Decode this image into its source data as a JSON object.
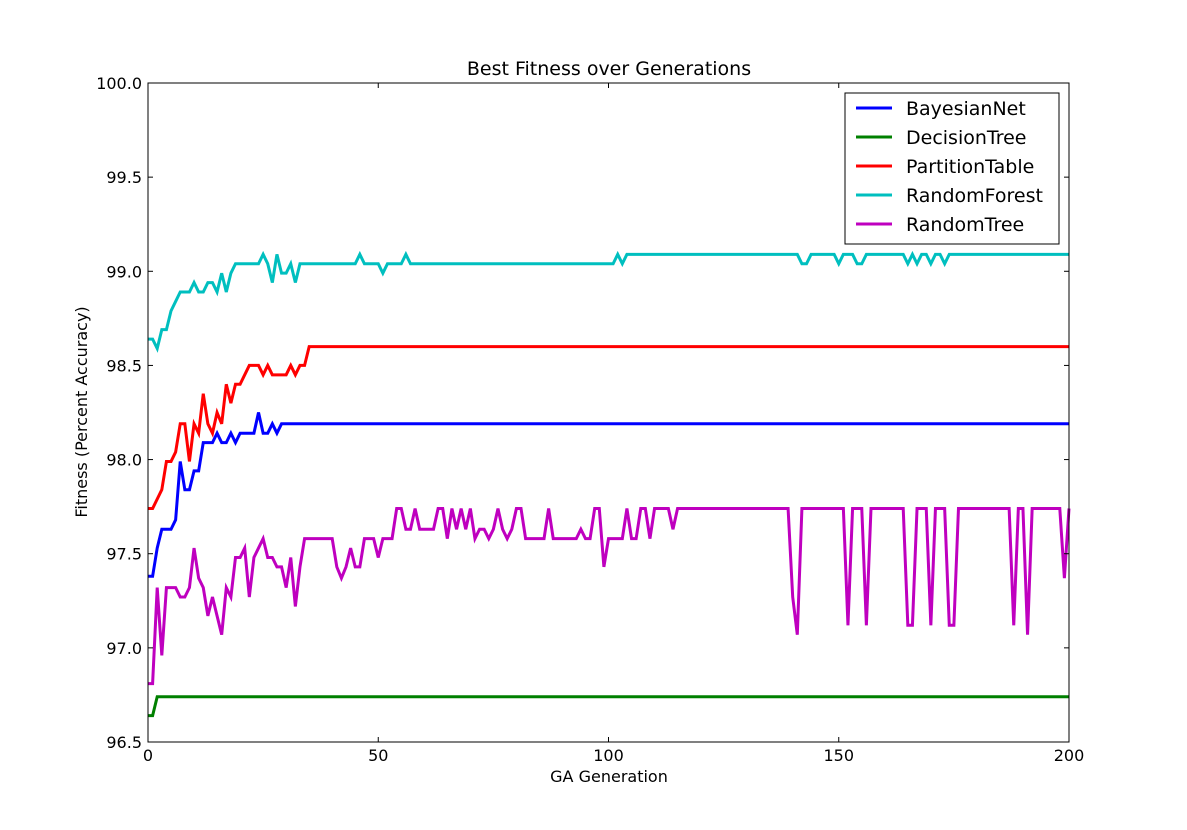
{
  "chart_data": {
    "type": "line",
    "title": "Best Fitness over Generations",
    "xlabel": "GA Generation",
    "ylabel": "Fitness (Percent Accuracy)",
    "xlim": [
      0,
      200
    ],
    "ylim": [
      96.5,
      100.0
    ],
    "xticks": [
      0,
      50,
      100,
      150,
      200
    ],
    "xtick_labels": [
      "0",
      "50",
      "100",
      "150",
      "200"
    ],
    "yticks": [
      96.5,
      97.0,
      97.5,
      98.0,
      98.5,
      99.0,
      99.5,
      100.0
    ],
    "ytick_labels": [
      "96.5",
      "97.0",
      "97.5",
      "98.0",
      "98.5",
      "99.0",
      "99.5",
      "100.0"
    ],
    "grid": false,
    "legend_position": "top-right",
    "series": [
      {
        "name": "BayesianNet",
        "color": "#0000ff",
        "points": [
          [
            0,
            97.38
          ],
          [
            1,
            97.38
          ],
          [
            2,
            97.53
          ],
          [
            3,
            97.63
          ],
          [
            4,
            97.63
          ],
          [
            5,
            97.63
          ],
          [
            6,
            97.68
          ],
          [
            7,
            97.99
          ],
          [
            8,
            97.84
          ],
          [
            9,
            97.84
          ],
          [
            10,
            97.94
          ],
          [
            11,
            97.94
          ],
          [
            12,
            98.09
          ],
          [
            13,
            98.09
          ],
          [
            14,
            98.09
          ],
          [
            15,
            98.14
          ],
          [
            16,
            98.09
          ],
          [
            17,
            98.09
          ],
          [
            18,
            98.14
          ],
          [
            19,
            98.09
          ],
          [
            20,
            98.14
          ],
          [
            21,
            98.14
          ],
          [
            22,
            98.14
          ],
          [
            23,
            98.14
          ],
          [
            24,
            98.25
          ],
          [
            25,
            98.14
          ],
          [
            26,
            98.14
          ],
          [
            27,
            98.19
          ],
          [
            28,
            98.14
          ],
          [
            29,
            98.19
          ],
          [
            200,
            98.19
          ]
        ]
      },
      {
        "name": "DecisionTree",
        "color": "#008000",
        "points": [
          [
            0,
            96.64
          ],
          [
            1,
            96.64
          ],
          [
            2,
            96.74
          ],
          [
            200,
            96.74
          ]
        ]
      },
      {
        "name": "PartitionTable",
        "color": "#ff0000",
        "points": [
          [
            0,
            97.74
          ],
          [
            1,
            97.74
          ],
          [
            3,
            97.84
          ],
          [
            4,
            97.99
          ],
          [
            5,
            97.99
          ],
          [
            6,
            98.04
          ],
          [
            7,
            98.19
          ],
          [
            8,
            98.19
          ],
          [
            9,
            97.99
          ],
          [
            10,
            98.19
          ],
          [
            11,
            98.14
          ],
          [
            12,
            98.35
          ],
          [
            13,
            98.19
          ],
          [
            14,
            98.14
          ],
          [
            15,
            98.25
          ],
          [
            16,
            98.19
          ],
          [
            17,
            98.4
          ],
          [
            18,
            98.3
          ],
          [
            19,
            98.4
          ],
          [
            20,
            98.4
          ],
          [
            22,
            98.5
          ],
          [
            23,
            98.5
          ],
          [
            24,
            98.5
          ],
          [
            25,
            98.45
          ],
          [
            26,
            98.5
          ],
          [
            27,
            98.45
          ],
          [
            30,
            98.45
          ],
          [
            31,
            98.5
          ],
          [
            32,
            98.45
          ],
          [
            33,
            98.5
          ],
          [
            34,
            98.5
          ],
          [
            35,
            98.6
          ],
          [
            200,
            98.6
          ]
        ]
      },
      {
        "name": "RandomForest",
        "color": "#00bfbf",
        "points": [
          [
            0,
            98.64
          ],
          [
            1,
            98.64
          ],
          [
            2,
            98.59
          ],
          [
            3,
            98.69
          ],
          [
            4,
            98.69
          ],
          [
            5,
            98.79
          ],
          [
            6,
            98.84
          ],
          [
            7,
            98.89
          ],
          [
            8,
            98.89
          ],
          [
            9,
            98.89
          ],
          [
            10,
            98.94
          ],
          [
            11,
            98.89
          ],
          [
            12,
            98.89
          ],
          [
            13,
            98.94
          ],
          [
            14,
            98.94
          ],
          [
            15,
            98.89
          ],
          [
            16,
            98.99
          ],
          [
            17,
            98.89
          ],
          [
            18,
            98.99
          ],
          [
            19,
            99.04
          ],
          [
            24,
            99.04
          ],
          [
            25,
            99.09
          ],
          [
            26,
            99.04
          ],
          [
            27,
            98.94
          ],
          [
            28,
            99.09
          ],
          [
            29,
            98.99
          ],
          [
            30,
            98.99
          ],
          [
            31,
            99.04
          ],
          [
            32,
            98.94
          ],
          [
            33,
            99.04
          ],
          [
            45,
            99.04
          ],
          [
            46,
            99.09
          ],
          [
            47,
            99.04
          ],
          [
            50,
            99.04
          ],
          [
            51,
            98.99
          ],
          [
            52,
            99.04
          ],
          [
            55,
            99.04
          ],
          [
            56,
            99.09
          ],
          [
            57,
            99.04
          ],
          [
            101,
            99.04
          ],
          [
            102,
            99.09
          ],
          [
            103,
            99.04
          ],
          [
            104,
            99.09
          ],
          [
            141,
            99.09
          ],
          [
            142,
            99.04
          ],
          [
            143,
            99.04
          ],
          [
            144,
            99.09
          ],
          [
            149,
            99.09
          ],
          [
            150,
            99.04
          ],
          [
            151,
            99.09
          ],
          [
            153,
            99.09
          ],
          [
            154,
            99.04
          ],
          [
            155,
            99.04
          ],
          [
            156,
            99.09
          ],
          [
            164,
            99.09
          ],
          [
            165,
            99.04
          ],
          [
            166,
            99.09
          ],
          [
            167,
            99.04
          ],
          [
            168,
            99.09
          ],
          [
            169,
            99.09
          ],
          [
            170,
            99.04
          ],
          [
            171,
            99.09
          ],
          [
            172,
            99.09
          ],
          [
            173,
            99.04
          ],
          [
            174,
            99.09
          ],
          [
            200,
            99.09
          ]
        ]
      },
      {
        "name": "RandomTree",
        "color": "#bf00bf",
        "points": [
          [
            0,
            96.81
          ],
          [
            1,
            96.81
          ],
          [
            2,
            97.32
          ],
          [
            3,
            96.96
          ],
          [
            4,
            97.32
          ],
          [
            5,
            97.32
          ],
          [
            6,
            97.32
          ],
          [
            7,
            97.27
          ],
          [
            8,
            97.27
          ],
          [
            9,
            97.32
          ],
          [
            10,
            97.53
          ],
          [
            11,
            97.37
          ],
          [
            12,
            97.32
          ],
          [
            13,
            97.17
          ],
          [
            14,
            97.27
          ],
          [
            15,
            97.17
          ],
          [
            16,
            97.07
          ],
          [
            17,
            97.32
          ],
          [
            18,
            97.27
          ],
          [
            19,
            97.48
          ],
          [
            20,
            97.48
          ],
          [
            21,
            97.53
          ],
          [
            22,
            97.27
          ],
          [
            23,
            97.48
          ],
          [
            24,
            97.53
          ],
          [
            25,
            97.58
          ],
          [
            26,
            97.48
          ],
          [
            27,
            97.48
          ],
          [
            28,
            97.43
          ],
          [
            29,
            97.43
          ],
          [
            30,
            97.32
          ],
          [
            31,
            97.48
          ],
          [
            32,
            97.22
          ],
          [
            33,
            97.43
          ],
          [
            34,
            97.58
          ],
          [
            40,
            97.58
          ],
          [
            41,
            97.43
          ],
          [
            42,
            97.37
          ],
          [
            43,
            97.43
          ],
          [
            44,
            97.53
          ],
          [
            45,
            97.43
          ],
          [
            46,
            97.43
          ],
          [
            47,
            97.58
          ],
          [
            49,
            97.58
          ],
          [
            50,
            97.48
          ],
          [
            51,
            97.58
          ],
          [
            53,
            97.58
          ],
          [
            54,
            97.74
          ],
          [
            55,
            97.74
          ],
          [
            56,
            97.63
          ],
          [
            57,
            97.63
          ],
          [
            58,
            97.74
          ],
          [
            59,
            97.63
          ],
          [
            62,
            97.63
          ],
          [
            63,
            97.74
          ],
          [
            64,
            97.74
          ],
          [
            65,
            97.58
          ],
          [
            66,
            97.74
          ],
          [
            67,
            97.63
          ],
          [
            68,
            97.74
          ],
          [
            69,
            97.63
          ],
          [
            70,
            97.74
          ],
          [
            71,
            97.58
          ],
          [
            72,
            97.63
          ],
          [
            73,
            97.63
          ],
          [
            74,
            97.58
          ],
          [
            75,
            97.63
          ],
          [
            76,
            97.74
          ],
          [
            77,
            97.63
          ],
          [
            78,
            97.58
          ],
          [
            79,
            97.63
          ],
          [
            80,
            97.74
          ],
          [
            81,
            97.74
          ],
          [
            82,
            97.58
          ],
          [
            86,
            97.58
          ],
          [
            87,
            97.74
          ],
          [
            88,
            97.58
          ],
          [
            93,
            97.58
          ],
          [
            94,
            97.63
          ],
          [
            95,
            97.58
          ],
          [
            96,
            97.58
          ],
          [
            97,
            97.74
          ],
          [
            98,
            97.74
          ],
          [
            99,
            97.43
          ],
          [
            100,
            97.58
          ],
          [
            103,
            97.58
          ],
          [
            104,
            97.74
          ],
          [
            105,
            97.58
          ],
          [
            106,
            97.58
          ],
          [
            107,
            97.74
          ],
          [
            108,
            97.74
          ],
          [
            109,
            97.58
          ],
          [
            110,
            97.74
          ],
          [
            113,
            97.74
          ],
          [
            114,
            97.63
          ],
          [
            115,
            97.74
          ],
          [
            139,
            97.74
          ],
          [
            140,
            97.27
          ],
          [
            141,
            97.07
          ],
          [
            142,
            97.74
          ],
          [
            151,
            97.74
          ],
          [
            152,
            97.12
          ],
          [
            153,
            97.74
          ],
          [
            155,
            97.74
          ],
          [
            156,
            97.12
          ],
          [
            157,
            97.74
          ],
          [
            164,
            97.74
          ],
          [
            165,
            97.12
          ],
          [
            166,
            97.12
          ],
          [
            167,
            97.74
          ],
          [
            169,
            97.74
          ],
          [
            170,
            97.12
          ],
          [
            171,
            97.74
          ],
          [
            173,
            97.74
          ],
          [
            174,
            97.12
          ],
          [
            175,
            97.12
          ],
          [
            176,
            97.74
          ],
          [
            187,
            97.74
          ],
          [
            188,
            97.12
          ],
          [
            189,
            97.74
          ],
          [
            190,
            97.74
          ],
          [
            191,
            97.07
          ],
          [
            192,
            97.74
          ],
          [
            198,
            97.74
          ],
          [
            199,
            97.37
          ],
          [
            200,
            97.74
          ]
        ]
      }
    ]
  }
}
